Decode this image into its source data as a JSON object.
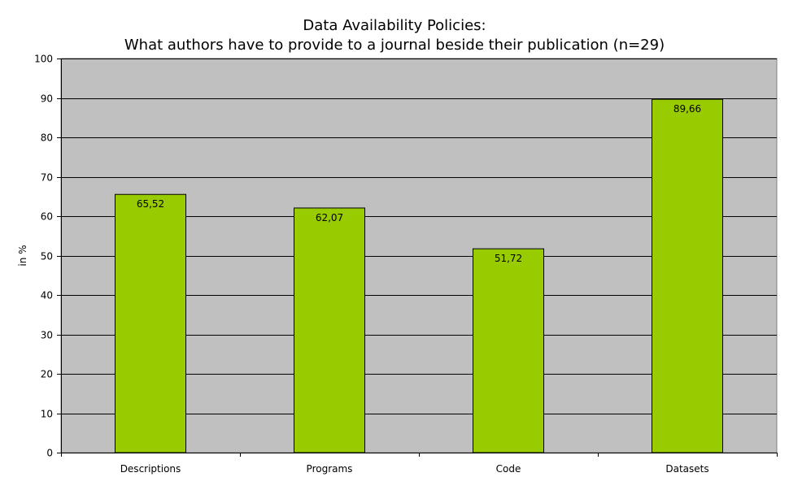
{
  "chart_data": {
    "type": "bar",
    "title": "Data Availability Policies:",
    "subtitle": "What authors have to provide to a journal beside their publication  (n=29)",
    "xlabel": "",
    "ylabel": "in %",
    "categories": [
      "Descriptions",
      "Programs",
      "Code",
      "Datasets"
    ],
    "values": [
      65.52,
      62.07,
      51.72,
      89.66
    ],
    "data_labels": [
      "65,52",
      "62,07",
      "51,72",
      "89,66"
    ],
    "ylim": [
      0,
      100
    ],
    "yticks": [
      0,
      10,
      20,
      30,
      40,
      50,
      60,
      70,
      80,
      90,
      100
    ],
    "grid": true,
    "legend": "none",
    "colors": {
      "bar": "#99cc00",
      "plot_background": "#c0c0c0",
      "gridline": "#000000"
    }
  }
}
